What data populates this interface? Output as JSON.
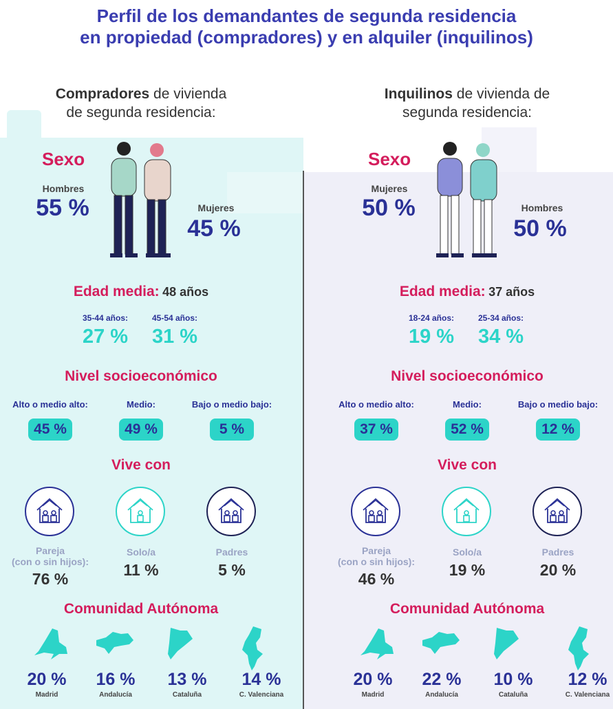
{
  "title": {
    "line1": "Perfil de los demandantes de segunda residencia",
    "line2": "en propiedad (compradores) y en alquiler (inquilinos)"
  },
  "colors": {
    "title": "#3a3db0",
    "accent": "#d41d5c",
    "teal": "#2cd4c8",
    "navy": "#2a3196"
  },
  "columns": [
    {
      "heading_bold": "Compradores",
      "heading_rest": " de vivienda",
      "heading_line2": "de segunda residencia:",
      "sexo_label": "Sexo",
      "sex1": {
        "label": "Hombres",
        "value": "55 %"
      },
      "sex2": {
        "label": "Mujeres",
        "value": "45 %"
      },
      "edad_label": "Edad media:",
      "edad_value": "48 años",
      "ages": [
        {
          "label": "35-44 años:",
          "value": "27 %"
        },
        {
          "label": "45-54 años:",
          "value": "31 %"
        }
      ],
      "nivel_label": "Nivel socioeconómico",
      "nivel": [
        {
          "label": "Alto o medio alto:",
          "value": "45 %"
        },
        {
          "label": "Medio:",
          "value": "49 %"
        },
        {
          "label": "Bajo o medio bajo:",
          "value": "5 %"
        }
      ],
      "vive_label": "Vive con",
      "vive": [
        {
          "label": "Pareja",
          "label2": "(con o sin hijos):",
          "value": "76 %",
          "icon": "house-couple-icon"
        },
        {
          "label": "Solo/a",
          "label2": "",
          "value": "11 %",
          "icon": "house-single-icon"
        },
        {
          "label": "Padres",
          "label2": "",
          "value": "5 %",
          "icon": "house-parents-icon"
        }
      ],
      "ca_label": "Comunidad Autónoma",
      "ca": [
        {
          "name": "Madrid",
          "value": "20 %"
        },
        {
          "name": "Andalucía",
          "value": "16 %"
        },
        {
          "name": "Cataluña",
          "value": "13 %"
        },
        {
          "name": "C. Valenciana",
          "value": "14 %"
        }
      ]
    },
    {
      "heading_bold": "Inquilinos",
      "heading_rest": " de vivienda de",
      "heading_line2": "segunda residencia:",
      "sexo_label": "Sexo",
      "sex1": {
        "label": "Mujeres",
        "value": "50 %"
      },
      "sex2": {
        "label": "Hombres",
        "value": "50 %"
      },
      "edad_label": "Edad media:",
      "edad_value": "37 años",
      "ages": [
        {
          "label": "18-24 años:",
          "value": "19 %"
        },
        {
          "label": "25-34 años:",
          "value": "34 %"
        }
      ],
      "nivel_label": "Nivel socioeconómico",
      "nivel": [
        {
          "label": "Alto o medio alto:",
          "value": "37 %"
        },
        {
          "label": "Medio:",
          "value": "52 %"
        },
        {
          "label": "Bajo o medio bajo:",
          "value": "12 %"
        }
      ],
      "vive_label": "Vive con",
      "vive": [
        {
          "label": "Pareja",
          "label2": "(con o sin hijos):",
          "value": "46 %",
          "icon": "house-couple-icon"
        },
        {
          "label": "Solo/a",
          "label2": "",
          "value": "19 %",
          "icon": "house-single-icon"
        },
        {
          "label": "Padres",
          "label2": "",
          "value": "20 %",
          "icon": "house-parents-icon"
        }
      ],
      "ca_label": "Comunidad Autónoma",
      "ca": [
        {
          "name": "Madrid",
          "value": "20 %"
        },
        {
          "name": "Andalucía",
          "value": "22 %"
        },
        {
          "name": "Cataluña",
          "value": "10 %"
        },
        {
          "name": "C. Valenciana",
          "value": "12 %"
        }
      ]
    }
  ]
}
